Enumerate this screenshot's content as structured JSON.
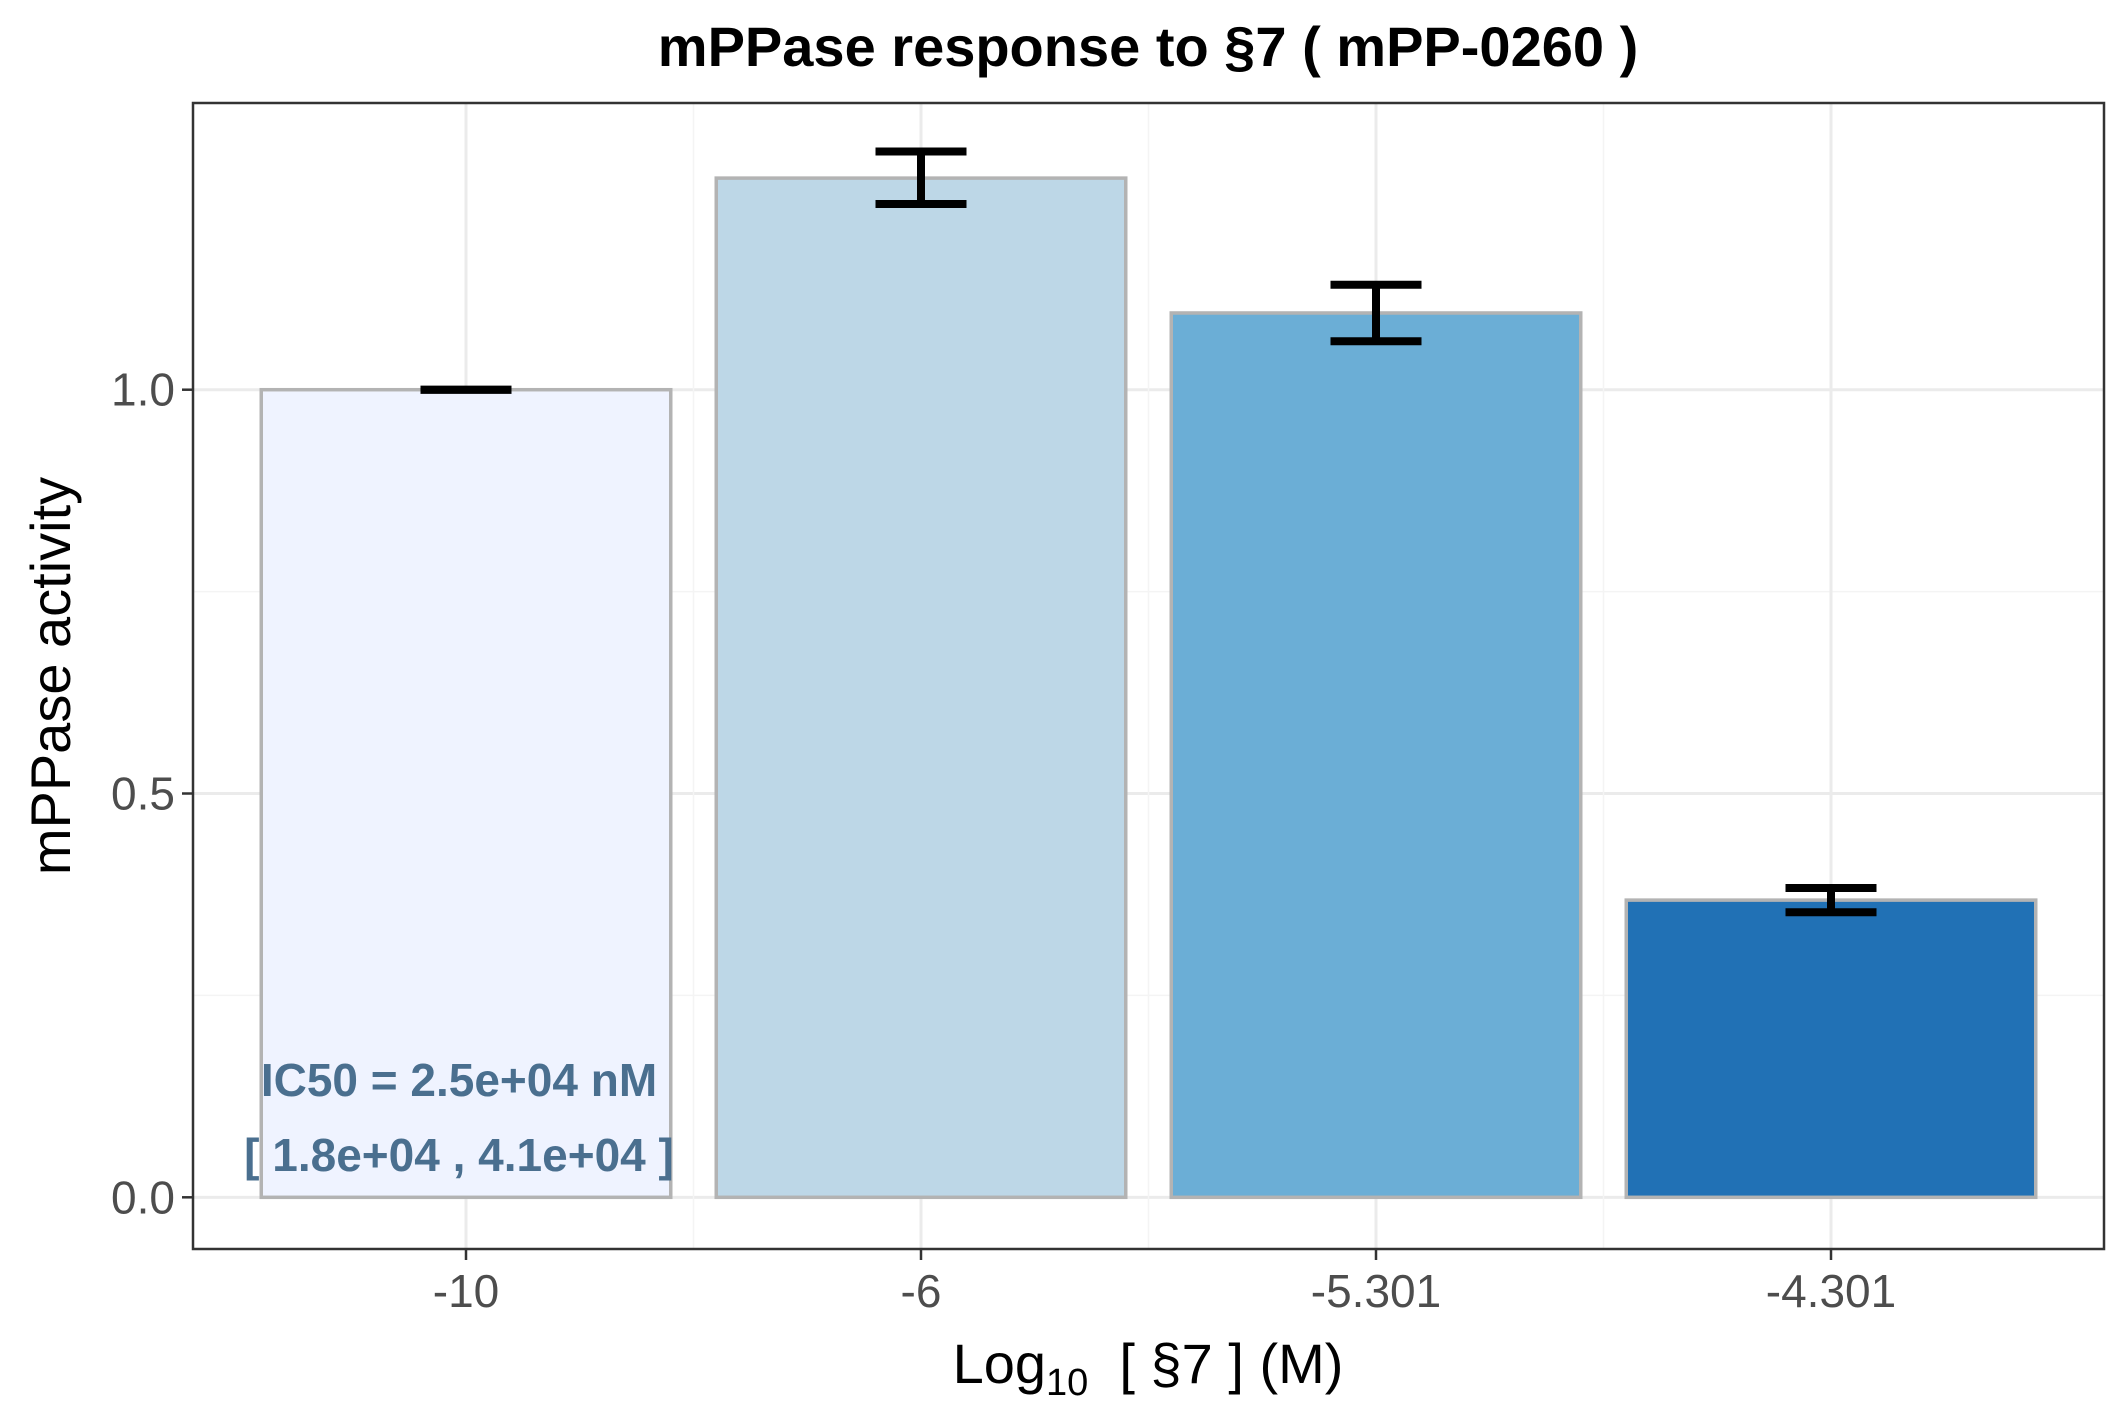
{
  "chart_data": {
    "type": "bar",
    "title": "mPPase response to §7 ( mPP-0260 )",
    "xlabel": {
      "prefix": "Log",
      "subscript": "10",
      "suffix": "  [ §7 ] (M)"
    },
    "ylabel": "mPPase activity",
    "categories": [
      "-10",
      "-6",
      "-5.301",
      "-4.301"
    ],
    "series": [
      {
        "values": [
          1.0,
          1.262,
          1.095,
          0.368
        ],
        "error_low": [
          1.0,
          1.23,
          1.06,
          0.353
        ],
        "error_high": [
          1.0,
          1.295,
          1.13,
          0.383
        ],
        "colors": [
          "#eff3ff",
          "#bdd7e7",
          "#6baed6",
          "#2171b5"
        ]
      }
    ],
    "bar_outline_color": "#b3b3b3",
    "ylim": [
      -0.064,
      1.355
    ],
    "y_ticks": [
      "0.0",
      "0.5",
      "1.0"
    ],
    "y_tick_values": [
      0.0,
      0.5,
      1.0
    ],
    "grid": true,
    "annotation": {
      "line1": "IC50 = 2.5e+04 nM",
      "line2": "[ 1.8e+04 , 4.1e+04 ]",
      "color": "#4a6f8f"
    }
  }
}
